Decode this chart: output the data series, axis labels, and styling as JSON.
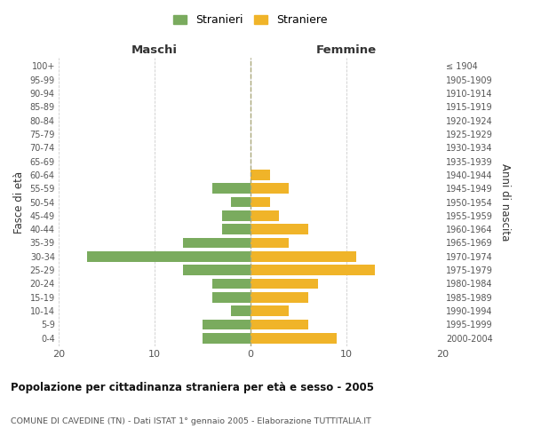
{
  "age_groups": [
    "0-4",
    "5-9",
    "10-14",
    "15-19",
    "20-24",
    "25-29",
    "30-34",
    "35-39",
    "40-44",
    "45-49",
    "50-54",
    "55-59",
    "60-64",
    "65-69",
    "70-74",
    "75-79",
    "80-84",
    "85-89",
    "90-94",
    "95-99",
    "100+"
  ],
  "birth_years": [
    "2000-2004",
    "1995-1999",
    "1990-1994",
    "1985-1989",
    "1980-1984",
    "1975-1979",
    "1970-1974",
    "1965-1969",
    "1960-1964",
    "1955-1959",
    "1950-1954",
    "1945-1949",
    "1940-1944",
    "1935-1939",
    "1930-1934",
    "1925-1929",
    "1920-1924",
    "1915-1919",
    "1910-1914",
    "1905-1909",
    "≤ 1904"
  ],
  "males": [
    5,
    5,
    2,
    4,
    4,
    7,
    17,
    7,
    3,
    3,
    2,
    4,
    0,
    0,
    0,
    0,
    0,
    0,
    0,
    0,
    0
  ],
  "females": [
    9,
    6,
    4,
    6,
    7,
    13,
    11,
    4,
    6,
    3,
    2,
    4,
    2,
    0,
    0,
    0,
    0,
    0,
    0,
    0,
    0
  ],
  "male_color": "#7aab5e",
  "female_color": "#f0b429",
  "title": "Popolazione per cittadinanza straniera per età e sesso - 2005",
  "subtitle": "COMUNE DI CAVEDINE (TN) - Dati ISTAT 1° gennaio 2005 - Elaborazione TUTTITALIA.IT",
  "xlabel_left": "Maschi",
  "xlabel_right": "Femmine",
  "ylabel_left": "Fasce di età",
  "ylabel_right": "Anni di nascita",
  "legend_male": "Stranieri",
  "legend_female": "Straniere",
  "xlim": 20,
  "background_color": "#ffffff",
  "grid_color": "#cccccc"
}
